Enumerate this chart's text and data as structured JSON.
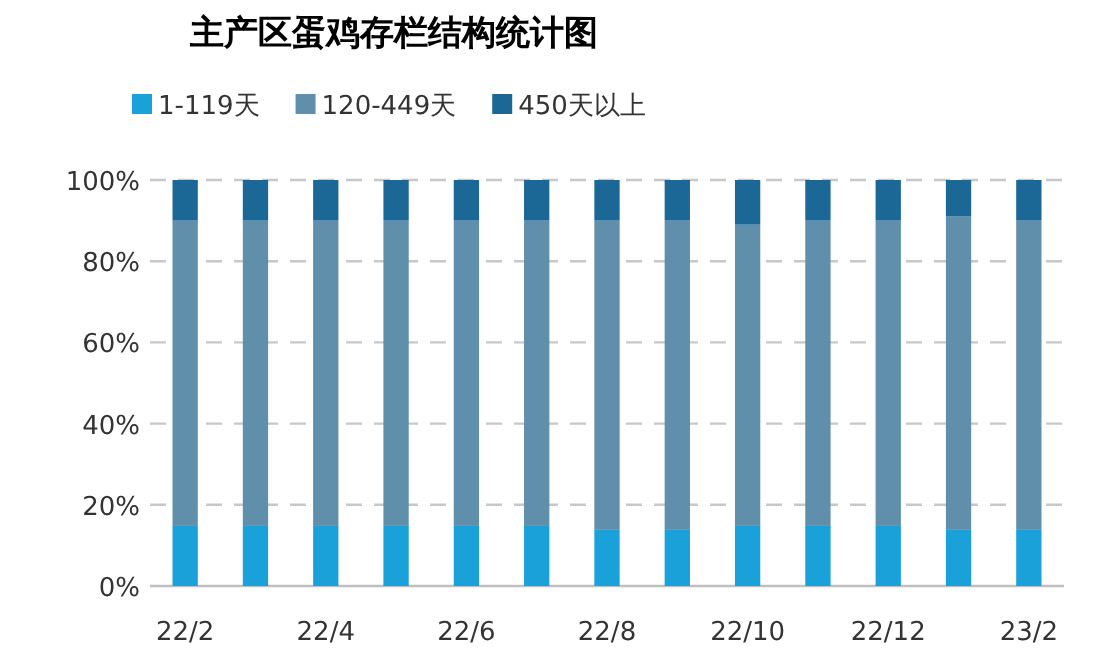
{
  "chart_data": {
    "type": "bar",
    "title": "主产区蛋鸡存栏结构统计图",
    "stacked": true,
    "categories": [
      "22/2",
      null,
      "22/4",
      null,
      "22/6",
      null,
      "22/8",
      null,
      "22/10",
      null,
      "22/12",
      null,
      "23/2"
    ],
    "series": [
      {
        "name": "1-119天",
        "color": "#1ba1d9",
        "values": [
          15,
          15,
          15,
          15,
          15,
          15,
          14,
          14,
          15,
          15,
          15,
          14,
          14
        ]
      },
      {
        "name": "120-449天",
        "color": "#5f8fab",
        "values": [
          75,
          75,
          75,
          75,
          75,
          75,
          76,
          76,
          74,
          75,
          75,
          77,
          76
        ]
      },
      {
        "name": "450天以上",
        "color": "#1b6897",
        "values": [
          10,
          10,
          10,
          10,
          10,
          10,
          10,
          10,
          11,
          10,
          10,
          9,
          10
        ]
      }
    ],
    "ylim": [
      0,
      100
    ],
    "yticks": [
      {
        "value": 0,
        "label": "0%"
      },
      {
        "value": 20,
        "label": "20%"
      },
      {
        "value": 40,
        "label": "40%"
      },
      {
        "value": 60,
        "label": "60%"
      },
      {
        "value": 80,
        "label": "80%"
      },
      {
        "value": 100,
        "label": "100%"
      }
    ],
    "grid": "y",
    "legend": "top left"
  }
}
